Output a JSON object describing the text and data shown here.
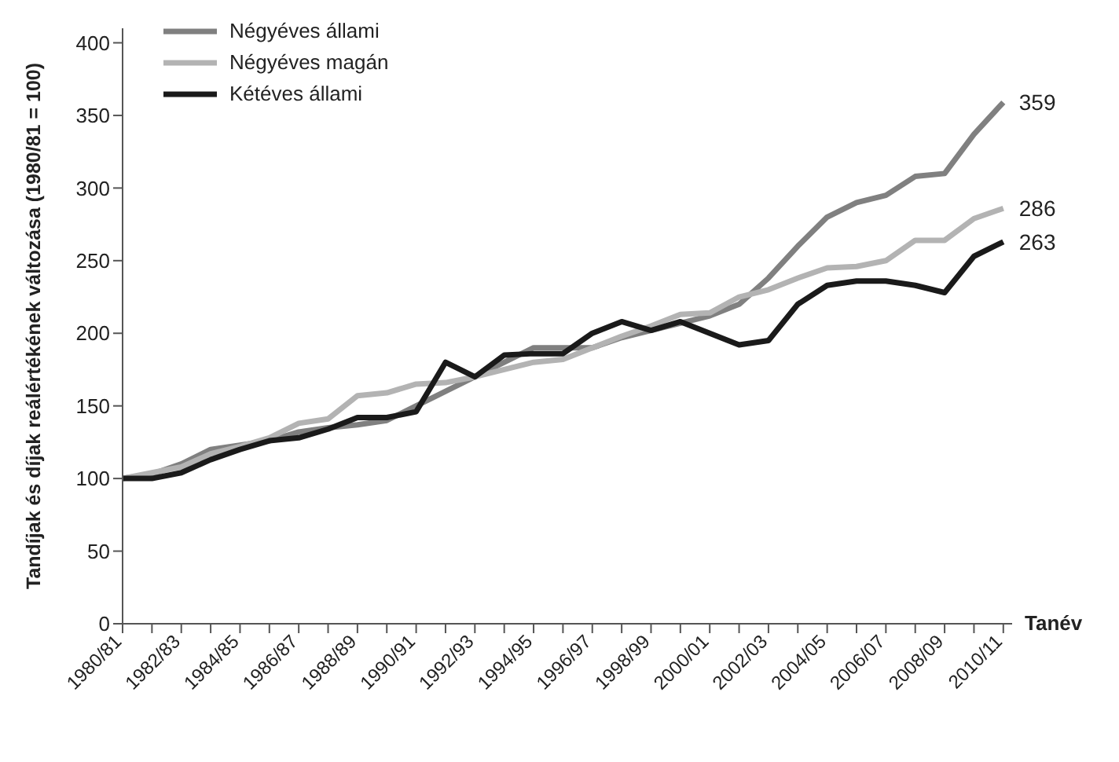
{
  "chart_data": {
    "type": "line",
    "xlabel": "Tanév",
    "ylabel": "Tandíjak és díjak reálértékének változása (1980/81 = 100)",
    "categories": [
      "1980/81",
      null,
      "1982/83",
      null,
      "1984/85",
      null,
      "1986/87",
      null,
      "1988/89",
      null,
      "1990/91",
      null,
      "1992/93",
      null,
      "1994/95",
      null,
      "1996/97",
      null,
      "1998/99",
      null,
      "2000/01",
      null,
      "2002/03",
      null,
      "2004/05",
      null,
      "2006/07",
      null,
      "2008/09",
      null,
      "2010/11"
    ],
    "series": [
      {
        "name": "Négyéves állami",
        "color": "#808080",
        "values": [
          100,
          103,
          110,
          120,
          123,
          126,
          132,
          135,
          137,
          140,
          150,
          160,
          170,
          180,
          190,
          190,
          190,
          197,
          202,
          207,
          212,
          220,
          238,
          260,
          280,
          290,
          295,
          308,
          310,
          337,
          359
        ],
        "value_labels": [
          null,
          null,
          null,
          null,
          null,
          null,
          null,
          null,
          null,
          null,
          null,
          null,
          null,
          null,
          null,
          null,
          null,
          null,
          null,
          null,
          null,
          null,
          null,
          null,
          null,
          null,
          null,
          null,
          null,
          null,
          "359"
        ]
      },
      {
        "name": "Négyéves magán",
        "color": "#b3b3b3",
        "values": [
          100,
          104,
          108,
          117,
          122,
          128,
          138,
          141,
          157,
          159,
          165,
          166,
          170,
          175,
          180,
          182,
          190,
          198,
          205,
          213,
          214,
          225,
          230,
          238,
          245,
          246,
          250,
          264,
          264,
          279,
          286
        ],
        "value_labels": [
          null,
          null,
          null,
          null,
          null,
          null,
          null,
          null,
          null,
          null,
          null,
          null,
          null,
          null,
          null,
          null,
          null,
          null,
          null,
          null,
          null,
          null,
          null,
          null,
          null,
          null,
          null,
          null,
          null,
          null,
          "286"
        ]
      },
      {
        "name": "Kétéves állami",
        "color": "#1a1a1a",
        "values": [
          100,
          100,
          104,
          113,
          120,
          126,
          128,
          134,
          142,
          142,
          146,
          180,
          170,
          185,
          186,
          186,
          200,
          208,
          202,
          208,
          200,
          192,
          195,
          220,
          233,
          236,
          236,
          233,
          228,
          253,
          263
        ],
        "value_labels": [
          null,
          null,
          null,
          null,
          null,
          null,
          null,
          null,
          null,
          null,
          null,
          null,
          null,
          null,
          null,
          null,
          null,
          null,
          null,
          null,
          null,
          null,
          null,
          null,
          null,
          null,
          null,
          null,
          null,
          null,
          "263"
        ]
      }
    ],
    "ylim": [
      0,
      410
    ],
    "yticks": [
      0,
      50,
      100,
      150,
      200,
      250,
      300,
      350,
      400
    ],
    "grid": false,
    "legend": "top left",
    "marker": "none",
    "line_style": "solid"
  }
}
